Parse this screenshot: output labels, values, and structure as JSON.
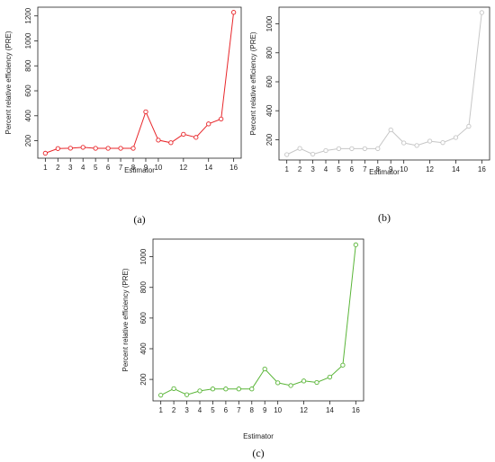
{
  "chart_data": [
    {
      "type": "line",
      "caption": "(a)",
      "xlabel": "Estimator",
      "ylabel": "Percent relative efficiency (PRE)",
      "color": "#e8262a",
      "marker": "open-circle",
      "x": [
        1,
        2,
        3,
        4,
        5,
        6,
        7,
        8,
        9,
        10,
        11,
        12,
        13,
        14,
        15,
        16
      ],
      "x_ticks": [
        1,
        2,
        3,
        4,
        5,
        6,
        7,
        8,
        9,
        10,
        12,
        14,
        16
      ],
      "series": [
        {
          "values": [
            100,
            137,
            140,
            147,
            139,
            139,
            139,
            139,
            432,
            205,
            184,
            252,
            227,
            335,
            374,
            1229
          ]
        }
      ],
      "y_ticks": [
        200,
        400,
        600,
        800,
        1000,
        1200
      ],
      "ylim": [
        60,
        1270
      ]
    },
    {
      "type": "line",
      "caption": "(b)",
      "xlabel": "Estimator",
      "ylabel": "Percent relative efficiency (PRE)",
      "color": "#c6c6c6",
      "marker": "open-circle",
      "x": [
        1,
        2,
        3,
        4,
        5,
        6,
        7,
        8,
        9,
        10,
        11,
        12,
        13,
        14,
        15,
        16
      ],
      "x_ticks": [
        1,
        2,
        3,
        4,
        5,
        6,
        7,
        8,
        9,
        10,
        12,
        14,
        16
      ],
      "series": [
        {
          "values": [
            97,
            140,
            100,
            125,
            138,
            138,
            138,
            138,
            268,
            178,
            160,
            190,
            180,
            215,
            293,
            1078
          ]
        }
      ],
      "y_ticks": [
        200,
        400,
        600,
        800,
        1000
      ],
      "ylim": [
        60,
        1115
      ]
    },
    {
      "type": "line",
      "caption": "(c)",
      "xlabel": "Estimator",
      "ylabel": "Percent relative efficiency (PRE)",
      "color": "#5ab538",
      "marker": "open-circle",
      "x": [
        1,
        2,
        3,
        4,
        5,
        6,
        7,
        8,
        9,
        10,
        11,
        12,
        13,
        14,
        15,
        16
      ],
      "x_ticks": [
        1,
        2,
        3,
        4,
        5,
        6,
        7,
        8,
        9,
        10,
        12,
        14,
        16
      ],
      "series": [
        {
          "values": [
            97,
            140,
            100,
            125,
            138,
            138,
            138,
            138,
            268,
            178,
            160,
            190,
            180,
            215,
            293,
            1078
          ]
        }
      ],
      "y_ticks": [
        200,
        400,
        600,
        800,
        1000
      ],
      "ylim": [
        60,
        1115
      ]
    }
  ]
}
